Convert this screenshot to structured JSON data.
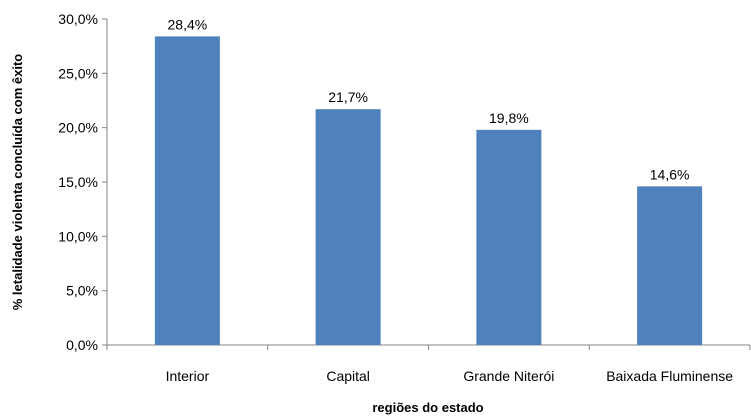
{
  "chart_data": {
    "type": "bar",
    "title": "",
    "xlabel": "regiões do estado",
    "ylabel": "% letalidade violenta concluída com êxito",
    "categories": [
      "Interior",
      "Capital",
      "Grande Niterói",
      "Baixada Fluminense"
    ],
    "values": [
      28.4,
      21.7,
      19.8,
      14.6
    ],
    "data_labels": [
      "28,4%",
      "21,7%",
      "19,8%",
      "14,6%"
    ],
    "ylim": [
      0,
      30
    ],
    "yticks": [
      0,
      5,
      10,
      15,
      20,
      25,
      30
    ],
    "ytick_labels": [
      "0,0%",
      "5,0%",
      "10,0%",
      "15,0%",
      "20,0%",
      "25,0%",
      "30,0%"
    ],
    "bar_color": "#4f81bd",
    "grid": false,
    "legend": "none"
  }
}
